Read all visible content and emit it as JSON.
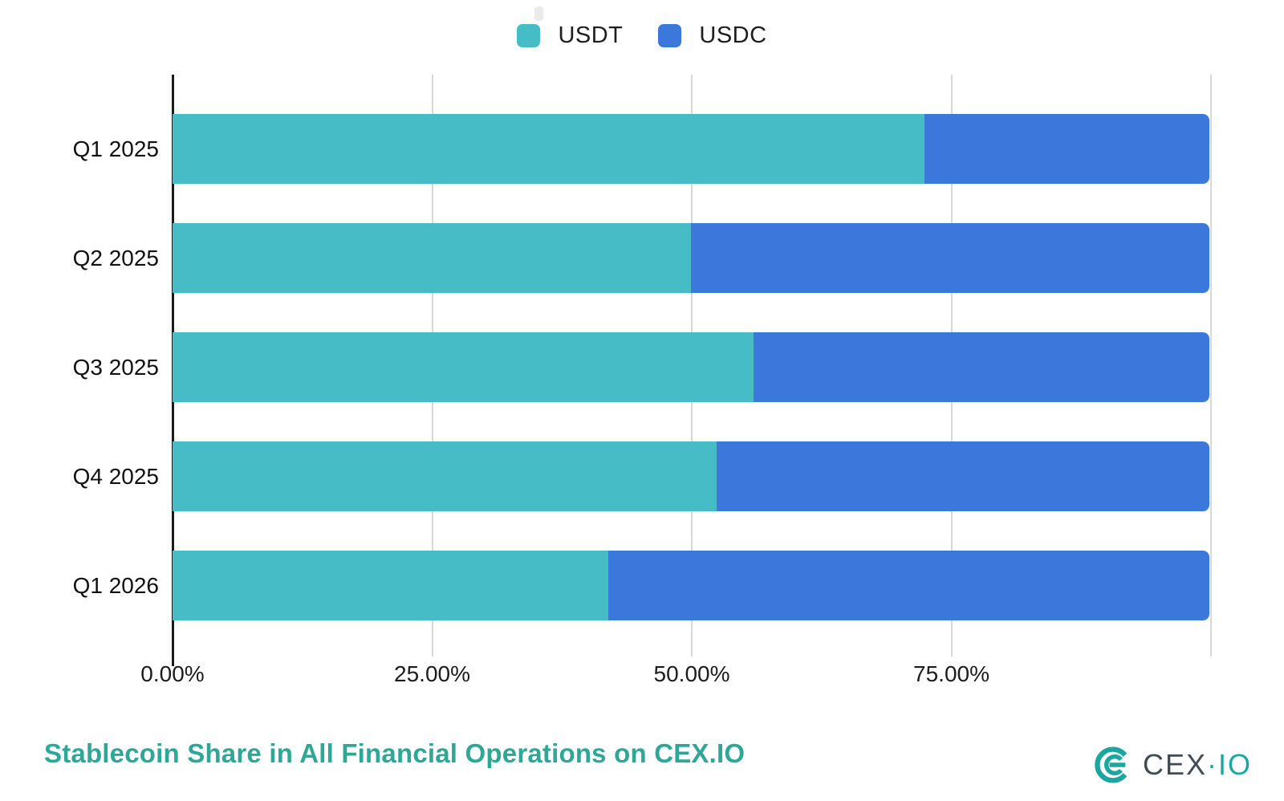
{
  "chart_data": {
    "type": "bar",
    "orientation": "horizontal",
    "stacked": true,
    "stack_total": 100,
    "title": "Stablecoin Share in All Financial Operations on CEX.IO",
    "categories": [
      "Q1 2025",
      "Q2 2025",
      "Q3 2025",
      "Q4 2025",
      "Q1 2026"
    ],
    "series": [
      {
        "name": "USDT",
        "color": "#46bdc6",
        "values": [
          72.5,
          50,
          56,
          52.5,
          42
        ]
      },
      {
        "name": "USDC",
        "color": "#3c78dc",
        "values": [
          27.5,
          50,
          44,
          47.5,
          58
        ]
      }
    ],
    "x_axis": {
      "unit": "percent",
      "range": [
        0,
        100
      ],
      "ticks": [
        "0.00%",
        "25.00%",
        "50.00%",
        "75.00%"
      ],
      "tick_values": [
        0,
        25,
        50,
        75
      ],
      "gridlines": [
        25,
        50,
        75,
        100
      ],
      "grid": true
    },
    "legend_position": "top"
  },
  "footer": {
    "title": "Stablecoin Share in All Financial Operations on CEX.IO",
    "brand": {
      "cex": "CEX",
      "dot": "·",
      "io": "IO"
    }
  },
  "colors": {
    "usdt": "#46bdc6",
    "usdc": "#3c78dc",
    "axis": "#1b1b1b",
    "gridline": "#d8d8d8",
    "text": "#1c1c1c",
    "title": "#2ea796",
    "brand_teal": "#1ba7a0",
    "brand_dark": "#414b52"
  }
}
